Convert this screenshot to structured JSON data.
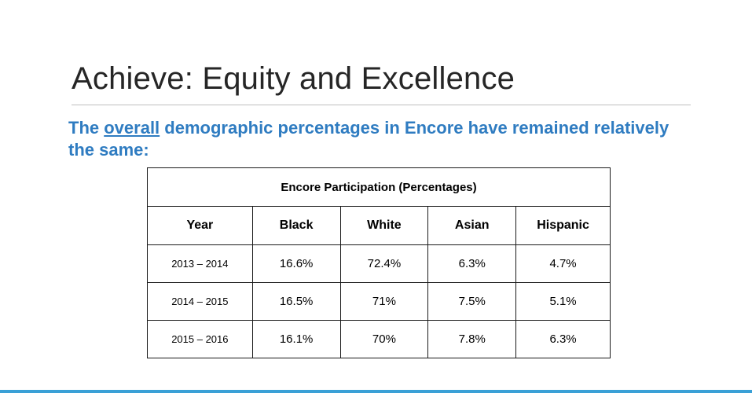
{
  "slide": {
    "title": "Achieve: Equity and Excellence",
    "subtitle_before": "The ",
    "subtitle_underlined": "overall",
    "subtitle_after": " demographic percentages in Encore have remained relatively the same:"
  },
  "table": {
    "caption": "Encore Participation (Percentages)",
    "headers": [
      "Year",
      "Black",
      "White",
      "Asian",
      "Hispanic"
    ],
    "rows": [
      [
        "2013 – 2014",
        "16.6%",
        "72.4%",
        "6.3%",
        "4.7%"
      ],
      [
        "2014 – 2015",
        "16.5%",
        "71%",
        "7.5%",
        "5.1%"
      ],
      [
        "2015 – 2016",
        "16.1%",
        "70%",
        "7.8%",
        "6.3%"
      ]
    ]
  },
  "colors": {
    "title": "#262626",
    "subtitle": "#2f7cc1",
    "accent_bar": "#3aa0d6",
    "rule": "#bfbfbf"
  }
}
